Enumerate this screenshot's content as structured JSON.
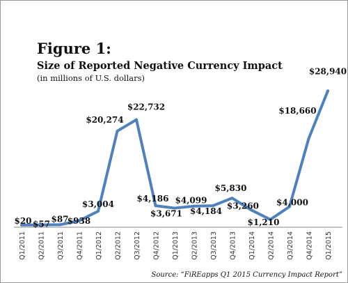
{
  "figure": {
    "title": "Figure 1:",
    "subtitle": "Size of Reported Negative Currency Impact",
    "note": "(in millions of U.S. dollars)",
    "source": "Source: “FiREapps Q1 2015 Currency Impact Report”"
  },
  "chart_data": {
    "type": "line",
    "title": "Size of Reported Negative Currency Impact",
    "categories": [
      "Q1/2011",
      "Q2/2011",
      "Q3/2011",
      "Q4/2011",
      "Q1/2012",
      "Q2/2012",
      "Q3/2012",
      "Q4/2012",
      "Q1/2013",
      "Q2/2013",
      "Q3/2013",
      "Q4/2013",
      "Q1/2014",
      "Q2/2014",
      "Q3/2014",
      "Q4/2014",
      "Q1/2015"
    ],
    "series": [
      {
        "values": [
          20,
          57,
          87,
          938,
          3004,
          20274,
          22732,
          4186,
          3671,
          4099,
          4184,
          5830,
          3260,
          1210,
          4000,
          18660,
          28940
        ],
        "data_labels": [
          "$20",
          "$57",
          "$87",
          "$938",
          "$3,004",
          "$20,274",
          "$22,732",
          "$4,186",
          "$3,671",
          "$4,099",
          "$4,184",
          "$5,830",
          "$3,260",
          "$1,210",
          "$4,000",
          "$18,660",
          "$28,940"
        ],
        "color": "#4f81bd"
      }
    ],
    "ylim": [
      0,
      29000
    ],
    "grid": false,
    "legend": "none"
  }
}
